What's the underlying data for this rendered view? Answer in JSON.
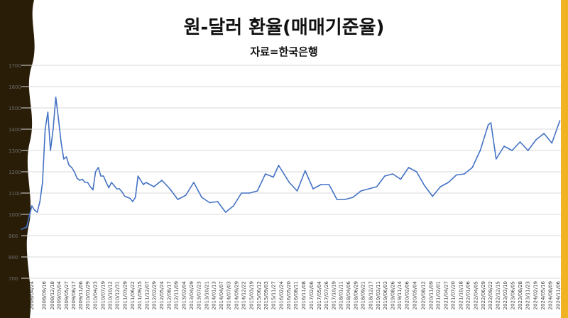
{
  "chart_data": {
    "type": "line",
    "title": "원-달러 환율(매매기준율)",
    "subtitle": "자료=한국은행",
    "xlabel": "",
    "ylabel": "",
    "ylim": [
      700,
      1700
    ],
    "yticks": [
      700,
      800,
      900,
      1000,
      1100,
      1200,
      1300,
      1400,
      1500,
      1600,
      1700
    ],
    "grid": true,
    "legend": "none",
    "line_color": "#4472C4",
    "x_tick_labels": [
      "2008/04/24",
      "2008/09/16",
      "2008/12/18",
      "2009/03/04",
      "2009/05/27",
      "2009/08/17",
      "2009/11/06",
      "2010/01/29",
      "2010/04/23",
      "2010/07/19",
      "2010/10/12",
      "2010/12/31",
      "2011/03/29",
      "2011/06/22",
      "2011/09/15",
      "2011/12/07",
      "2012/02/29",
      "2012/05/24",
      "2012/08/17",
      "2012/11/09",
      "2013/02/04",
      "2013/04/29",
      "2013/07/23",
      "2013/10/21",
      "2014/01/13",
      "2014/04/07",
      "2014/07/03",
      "2014/09/29",
      "2014/12/22",
      "2015/03/19",
      "2015/06/12",
      "2015/09/03",
      "2015/11/27",
      "2016/02/24",
      "2016/05/20",
      "2016/08/11",
      "2016/11/08",
      "2017/02/06",
      "2017/05/04",
      "2017/07/26",
      "2017/10/19",
      "2018/01/11",
      "2018/04/06",
      "2018/06/29",
      "2018/09/21",
      "2018/12/17",
      "2019/03/11",
      "2019/06/03",
      "2019/08/26",
      "2019/11/14",
      "2020/02/06",
      "2020/05/04",
      "2020/08/12",
      "2020/11/09",
      "2021/02/01",
      "2021/04/27",
      "2021/07/20",
      "2021/10/18",
      "2022/01/06",
      "2022/04/05",
      "2022/06/29",
      "2022/09/22",
      "2022/12/15",
      "2023/03/10",
      "2023/06/05",
      "2023/08/28",
      "2023/11/23",
      "2024/02/19",
      "2024/05/16",
      "2024/08/09",
      "2024/11/06"
    ],
    "series": [
      {
        "x": [
          "2008/01",
          "2008/03",
          "2008/04",
          "2008/05",
          "2008/06",
          "2008/07",
          "2008/08",
          "2008/09",
          "2008/10",
          "2008/11",
          "2008/12",
          "2009/01",
          "2009/02",
          "2009/03",
          "2009/04",
          "2009/05",
          "2009/06",
          "2009/07",
          "2009/08",
          "2009/09",
          "2009/10",
          "2009/11",
          "2009/12",
          "2010/01",
          "2010/02",
          "2010/03",
          "2010/04",
          "2010/05",
          "2010/06",
          "2010/07",
          "2010/08",
          "2010/09",
          "2010/10",
          "2010/11",
          "2010/12",
          "2011/01",
          "2011/02",
          "2011/03",
          "2011/04",
          "2011/05",
          "2011/06",
          "2011/07",
          "2011/08",
          "2011/09",
          "2011/10",
          "2011/11",
          "2011/12",
          "2012/03",
          "2012/06",
          "2012/09",
          "2012/12",
          "2013/03",
          "2013/06",
          "2013/09",
          "2013/12",
          "2014/03",
          "2014/06",
          "2014/09",
          "2014/12",
          "2015/03",
          "2015/06",
          "2015/09",
          "2015/12",
          "2016/02",
          "2016/06",
          "2016/09",
          "2016/12",
          "2017/03",
          "2017/06",
          "2017/09",
          "2017/12",
          "2018/03",
          "2018/06",
          "2018/09",
          "2018/12",
          "2019/03",
          "2019/06",
          "2019/09",
          "2019/12",
          "2020/03",
          "2020/06",
          "2020/09",
          "2020/12",
          "2021/03",
          "2021/06",
          "2021/09",
          "2021/12",
          "2022/03",
          "2022/06",
          "2022/09",
          "2022/10",
          "2022/12",
          "2023/03",
          "2023/06",
          "2023/09",
          "2023/12",
          "2024/03",
          "2024/06",
          "2024/09",
          "2024/12"
        ],
        "values": [
          930,
          940,
          990,
          1040,
          1020,
          1010,
          1060,
          1150,
          1400,
          1480,
          1300,
          1400,
          1550,
          1450,
          1340,
          1260,
          1270,
          1230,
          1220,
          1200,
          1170,
          1160,
          1165,
          1150,
          1150,
          1130,
          1115,
          1200,
          1220,
          1180,
          1180,
          1150,
          1125,
          1150,
          1135,
          1120,
          1120,
          1105,
          1085,
          1080,
          1075,
          1060,
          1080,
          1180,
          1160,
          1140,
          1150,
          1130,
          1160,
          1120,
          1070,
          1090,
          1150,
          1080,
          1055,
          1060,
          1010,
          1040,
          1100,
          1100,
          1110,
          1190,
          1175,
          1230,
          1150,
          1110,
          1205,
          1120,
          1140,
          1140,
          1070,
          1070,
          1080,
          1110,
          1120,
          1130,
          1180,
          1190,
          1165,
          1220,
          1200,
          1135,
          1085,
          1130,
          1150,
          1185,
          1190,
          1220,
          1300,
          1420,
          1430,
          1260,
          1320,
          1300,
          1340,
          1300,
          1350,
          1380,
          1335,
          1440
        ]
      }
    ]
  }
}
